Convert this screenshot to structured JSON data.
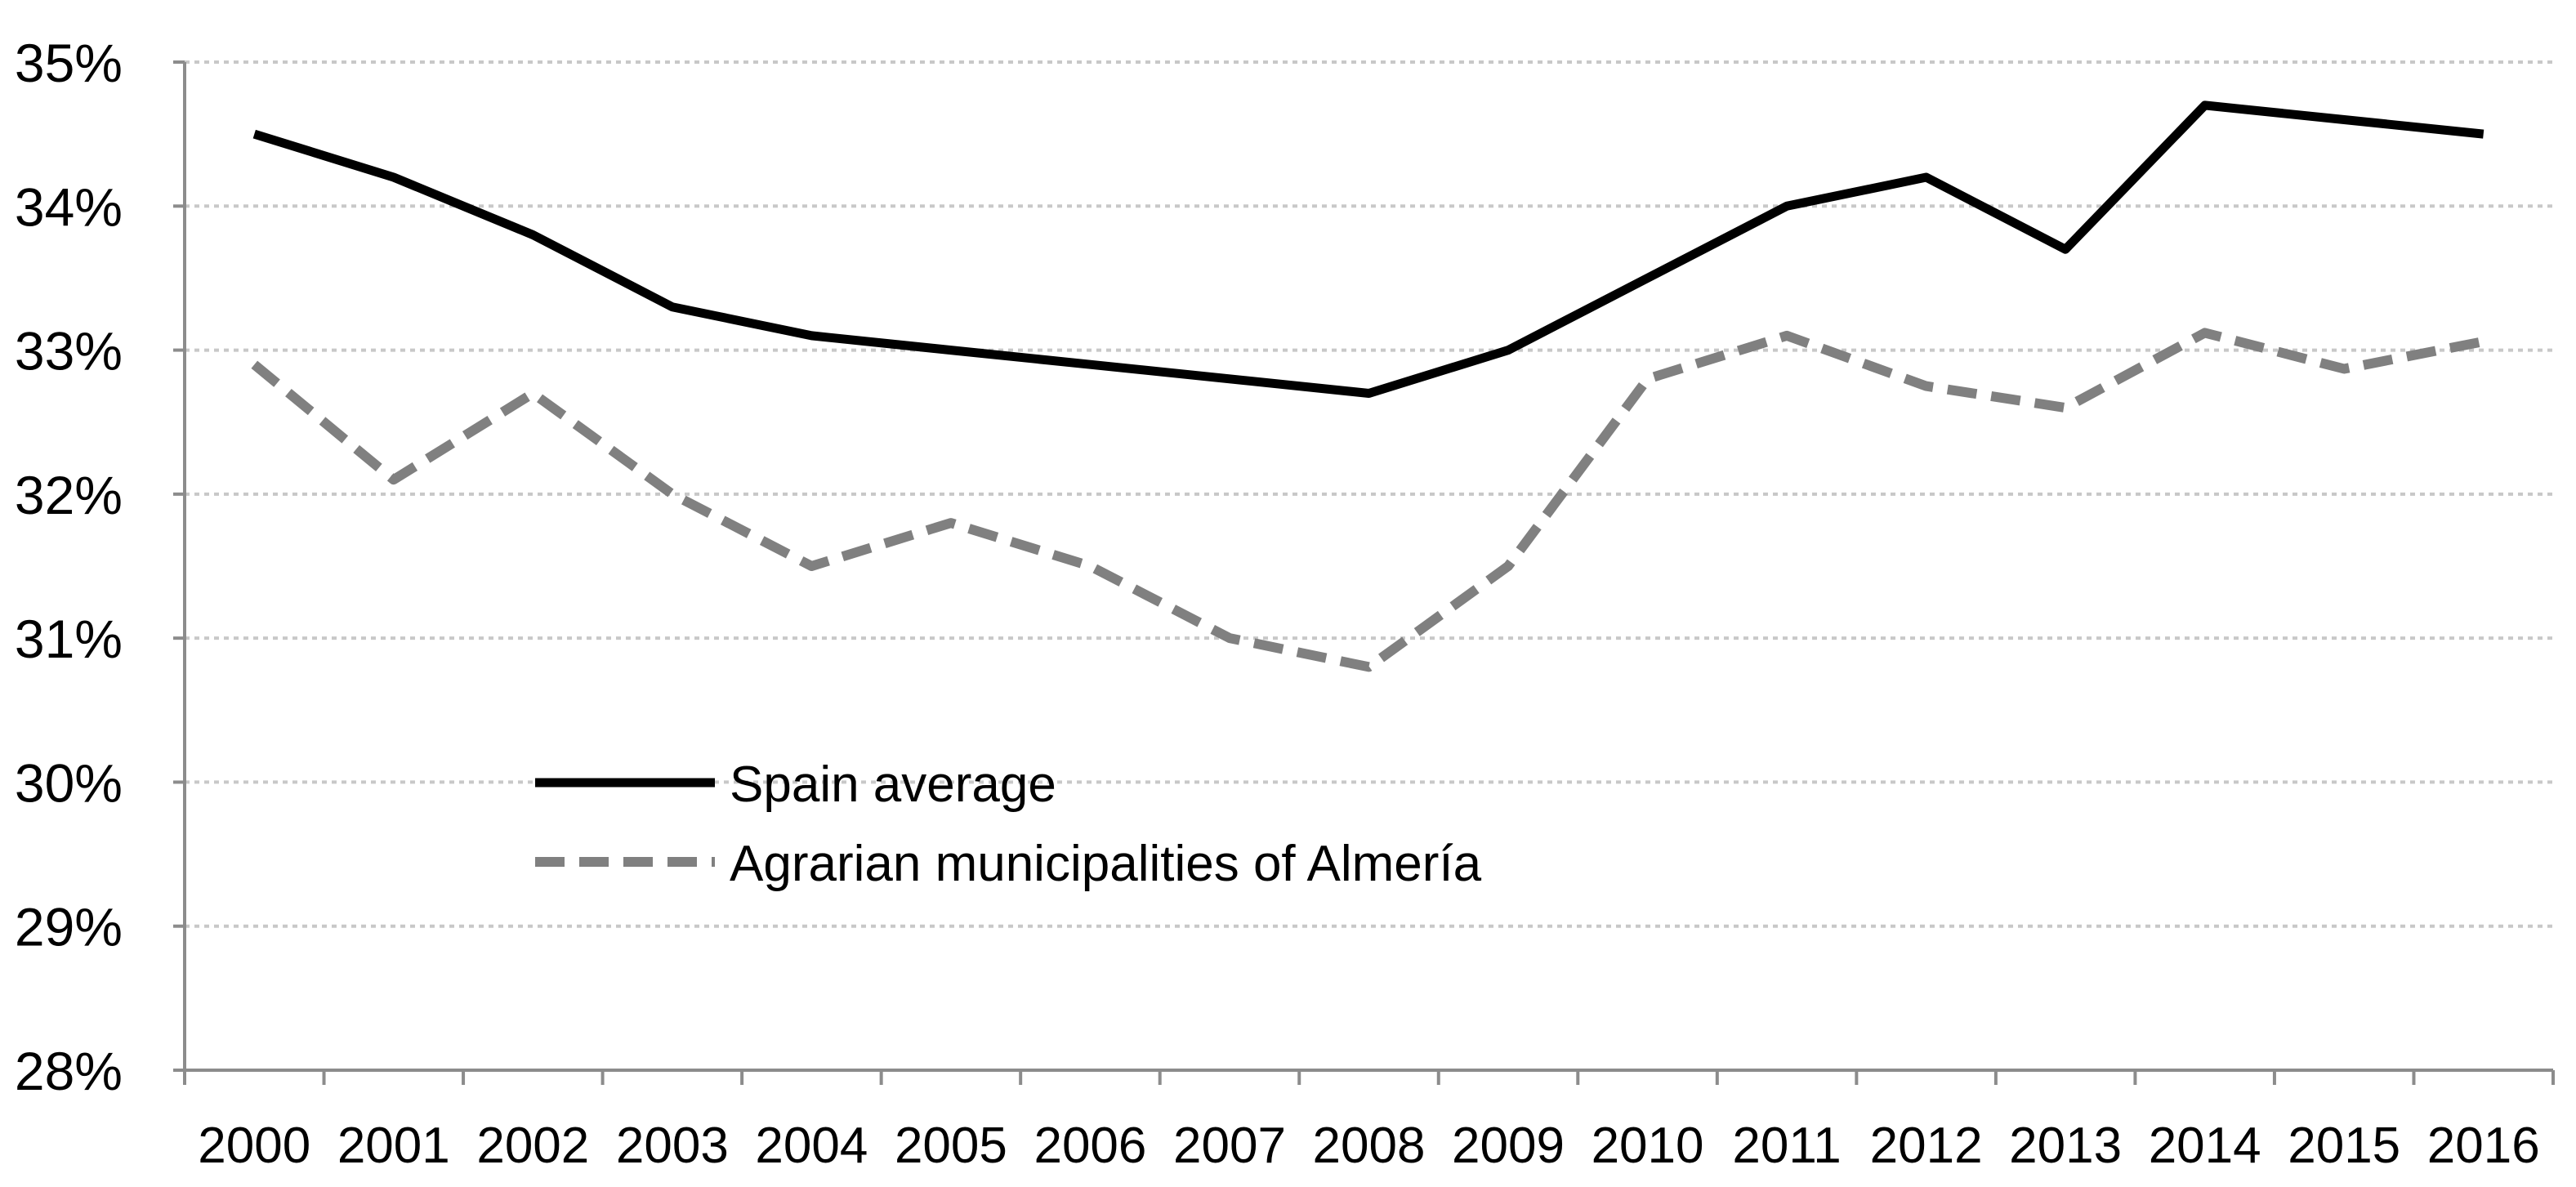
{
  "chart_data": {
    "type": "line",
    "title": "",
    "xlabel": "",
    "ylabel": "",
    "categories": [
      "2000",
      "2001",
      "2002",
      "2003",
      "2004",
      "2005",
      "2006",
      "2007",
      "2008",
      "2009",
      "2010",
      "2011",
      "2012",
      "2013",
      "2014",
      "2015",
      "2016"
    ],
    "ylim": [
      28,
      35
    ],
    "yticks": [
      28,
      29,
      30,
      31,
      32,
      33,
      34,
      35
    ],
    "ytick_labels": [
      "28%",
      "29%",
      "30%",
      "31%",
      "32%",
      "33%",
      "34%",
      "35%"
    ],
    "grid": "horizontal-dotted",
    "legend_position": "lower-left-inside",
    "series": [
      {
        "name": "Spain average",
        "style": "solid",
        "color": "#000000",
        "values": [
          34.5,
          34.2,
          33.8,
          33.3,
          33.1,
          33.0,
          32.9,
          32.8,
          32.7,
          33.0,
          33.5,
          34.0,
          34.2,
          33.7,
          34.7,
          34.6,
          34.5
        ]
      },
      {
        "name": "Agrarian municipalities of Almería",
        "style": "dashed",
        "color": "#808080",
        "values": [
          32.9,
          32.1,
          32.7,
          32.0,
          31.5,
          31.8,
          31.5,
          31.0,
          30.8,
          31.5,
          32.8,
          33.1,
          32.75,
          32.6,
          33.12,
          32.87,
          33.06
        ]
      }
    ]
  }
}
